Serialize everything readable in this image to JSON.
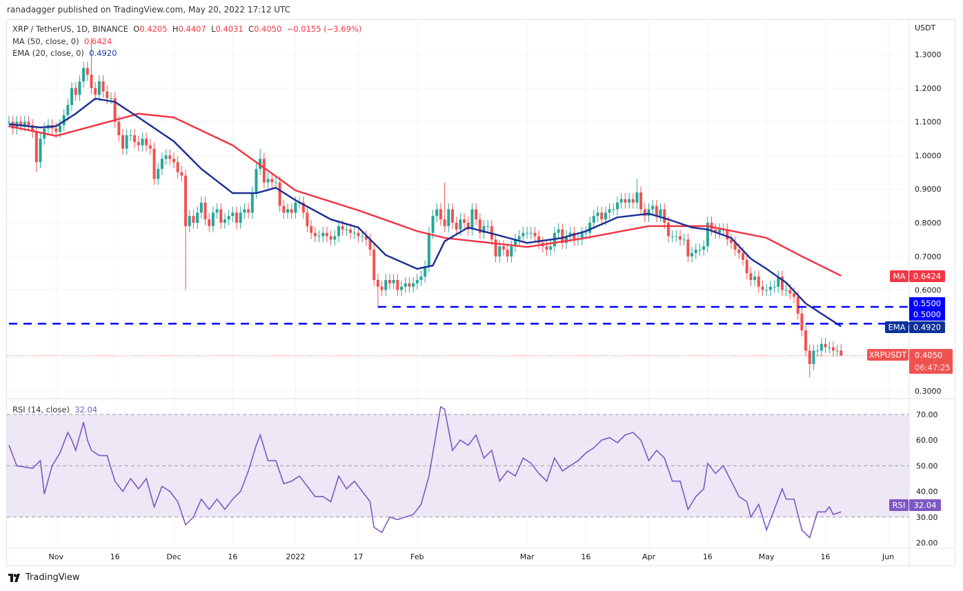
{
  "publisher_line": "ranadagger published on TradingView.com, May 20, 2022 17:12 UTC",
  "legend": {
    "symbol": "XRP / TetherUS, 1D, BINANCE",
    "o_label": "O",
    "o": "0.4205",
    "h_label": "H",
    "h": "0.4407",
    "l_label": "L",
    "l": "0.4031",
    "c_label": "C",
    "c": "0.4050",
    "change": "−0.0155 (−3.69%)",
    "ma_label": "MA (50, close, 0)",
    "ma_value": "0.6424",
    "ema_label": "EMA (20, close, 0)",
    "ema_value": "0.4920",
    "rsi_label": "RSI (14, close)",
    "rsi_value": "32.04"
  },
  "axis": {
    "currency": "USDT",
    "price_ticks": [
      "1.3000",
      "1.2000",
      "1.1000",
      "1.0000",
      "0.9000",
      "0.8000",
      "0.7000",
      "0.6000",
      "0.3000"
    ],
    "rsi_ticks": [
      "70.00",
      "60.00",
      "50.00",
      "40.00",
      "30.00",
      "20.00"
    ],
    "time_ticks": [
      {
        "date": "2021-11-01",
        "label": "Nov"
      },
      {
        "date": "2021-11-16",
        "label": "16"
      },
      {
        "date": "2021-12-01",
        "label": "Dec"
      },
      {
        "date": "2021-12-16",
        "label": "16"
      },
      {
        "date": "2022-01-01",
        "label": "2022"
      },
      {
        "date": "2022-01-17",
        "label": "17"
      },
      {
        "date": "2022-02-01",
        "label": "Feb"
      },
      {
        "date": "2022-03-01",
        "label": "Mar"
      },
      {
        "date": "2022-03-16",
        "label": "16"
      },
      {
        "date": "2022-04-01",
        "label": "Apr"
      },
      {
        "date": "2022-04-16",
        "label": "16"
      },
      {
        "date": "2022-05-01",
        "label": "May"
      },
      {
        "date": "2022-05-16",
        "label": "16"
      },
      {
        "date": "2022-06-01",
        "label": "Jun"
      }
    ]
  },
  "badges": {
    "ma_tag": "MA",
    "ma_price": "0.6424",
    "level_550": "0.5500",
    "level_500": "0.5000",
    "ema_tag": "EMA",
    "ema_price": "0.4920",
    "symbol_tag": "XRPUSDT",
    "last_price": "0.4050",
    "countdown": "06:47:25",
    "rsi_tag": "RSI",
    "rsi_price": "32.04"
  },
  "footer": {
    "brand": "TradingView"
  },
  "colors": {
    "up": "#26a69a",
    "down": "#ef5350",
    "ma": "#f23645",
    "ema": "#1e3093",
    "levels": "#0000ff",
    "rsi": "#7e57c2",
    "rsi_band": "#ede7f6"
  },
  "chart_data": [
    {
      "type": "candlestick",
      "start_date": "2021-10-20",
      "closes": [
        1.1,
        1.08,
        1.1,
        1.09,
        1.1,
        1.09,
        1.07,
        0.98,
        1.05,
        1.08,
        1.09,
        1.08,
        1.07,
        1.09,
        1.12,
        1.15,
        1.2,
        1.18,
        1.22,
        1.26,
        1.24,
        1.2,
        1.18,
        1.22,
        1.19,
        1.17,
        1.17,
        1.1,
        1.06,
        1.02,
        1.06,
        1.06,
        1.04,
        1.03,
        1.05,
        1.03,
        1.02,
        0.93,
        0.96,
        0.99,
        1.0,
        0.99,
        0.98,
        0.95,
        0.94,
        0.79,
        0.82,
        0.8,
        0.83,
        0.86,
        0.81,
        0.79,
        0.83,
        0.84,
        0.8,
        0.81,
        0.82,
        0.83,
        0.8,
        0.83,
        0.84,
        0.83,
        0.89,
        0.96,
        0.99,
        0.92,
        0.93,
        0.92,
        0.92,
        0.85,
        0.83,
        0.84,
        0.83,
        0.86,
        0.86,
        0.83,
        0.79,
        0.77,
        0.76,
        0.76,
        0.77,
        0.76,
        0.75,
        0.76,
        0.79,
        0.78,
        0.78,
        0.77,
        0.77,
        0.76,
        0.76,
        0.75,
        0.72,
        0.63,
        0.61,
        0.6,
        0.63,
        0.62,
        0.63,
        0.6,
        0.61,
        0.62,
        0.61,
        0.62,
        0.63,
        0.64,
        0.67,
        0.77,
        0.82,
        0.84,
        0.81,
        0.79,
        0.84,
        0.8,
        0.78,
        0.81,
        0.8,
        0.78,
        0.84,
        0.81,
        0.77,
        0.79,
        0.79,
        0.75,
        0.7,
        0.73,
        0.72,
        0.7,
        0.73,
        0.75,
        0.76,
        0.77,
        0.77,
        0.77,
        0.76,
        0.74,
        0.73,
        0.72,
        0.73,
        0.77,
        0.78,
        0.74,
        0.76,
        0.77,
        0.75,
        0.75,
        0.77,
        0.77,
        0.8,
        0.82,
        0.83,
        0.81,
        0.83,
        0.84,
        0.84,
        0.86,
        0.87,
        0.86,
        0.87,
        0.86,
        0.89,
        0.84,
        0.82,
        0.84,
        0.85,
        0.82,
        0.84,
        0.8,
        0.76,
        0.76,
        0.76,
        0.75,
        0.75,
        0.7,
        0.71,
        0.72,
        0.72,
        0.73,
        0.8,
        0.78,
        0.77,
        0.78,
        0.78,
        0.75,
        0.74,
        0.72,
        0.71,
        0.69,
        0.65,
        0.63,
        0.64,
        0.61,
        0.6,
        0.6,
        0.61,
        0.61,
        0.64,
        0.6,
        0.6,
        0.59,
        0.58,
        0.53,
        0.48,
        0.42,
        0.38,
        0.42,
        0.42,
        0.44,
        0.43,
        0.43,
        0.42,
        0.42,
        0.405
      ],
      "last_candle": {
        "o": 0.4205,
        "h": 0.4407,
        "l": 0.4031,
        "c": 0.405
      },
      "wick_extremes": {
        "2021-10-27": {
          "l": 0.95
        },
        "2021-11-10": {
          "h": 1.35
        },
        "2021-12-04": {
          "l": 0.6
        },
        "2021-12-23": {
          "h": 1.02
        },
        "2022-01-22": {
          "l": 0.55
        },
        "2022-02-08": {
          "h": 0.92
        },
        "2022-03-29": {
          "h": 0.93
        },
        "2022-05-12": {
          "l": 0.34
        }
      },
      "ylim": [
        0.26,
        1.39
      ]
    },
    {
      "type": "line",
      "name": "MA (50, close, 0)",
      "points": [
        [
          "2021-10-20",
          1.087
        ],
        [
          "2021-11-01",
          1.058
        ],
        [
          "2021-11-16",
          1.105
        ],
        [
          "2021-11-22",
          1.124
        ],
        [
          "2021-12-01",
          1.113
        ],
        [
          "2021-12-16",
          1.03
        ],
        [
          "2022-01-01",
          0.896
        ],
        [
          "2022-01-17",
          0.837
        ],
        [
          "2022-02-01",
          0.775
        ],
        [
          "2022-02-08",
          0.755
        ],
        [
          "2022-03-01",
          0.728
        ],
        [
          "2022-03-16",
          0.755
        ],
        [
          "2022-04-01",
          0.79
        ],
        [
          "2022-04-16",
          0.79
        ],
        [
          "2022-05-01",
          0.755
        ],
        [
          "2022-05-10",
          0.7
        ],
        [
          "2022-05-20",
          0.6424
        ]
      ]
    },
    {
      "type": "line",
      "name": "EMA (20, close, 0)",
      "points": [
        [
          "2021-10-20",
          1.093
        ],
        [
          "2021-10-28",
          1.083
        ],
        [
          "2021-11-01",
          1.087
        ],
        [
          "2021-11-06",
          1.124
        ],
        [
          "2021-11-11",
          1.169
        ],
        [
          "2021-11-16",
          1.159
        ],
        [
          "2021-11-22",
          1.113
        ],
        [
          "2021-12-01",
          1.042
        ],
        [
          "2021-12-08",
          0.96
        ],
        [
          "2021-12-16",
          0.888
        ],
        [
          "2021-12-22",
          0.888
        ],
        [
          "2021-12-27",
          0.904
        ],
        [
          "2022-01-01",
          0.867
        ],
        [
          "2022-01-10",
          0.81
        ],
        [
          "2022-01-17",
          0.786
        ],
        [
          "2022-01-24",
          0.704
        ],
        [
          "2022-02-01",
          0.663
        ],
        [
          "2022-02-05",
          0.673
        ],
        [
          "2022-02-08",
          0.745
        ],
        [
          "2022-02-14",
          0.786
        ],
        [
          "2022-02-21",
          0.765
        ],
        [
          "2022-03-01",
          0.74
        ],
        [
          "2022-03-10",
          0.755
        ],
        [
          "2022-03-16",
          0.775
        ],
        [
          "2022-03-24",
          0.816
        ],
        [
          "2022-04-01",
          0.827
        ],
        [
          "2022-04-06",
          0.81
        ],
        [
          "2022-04-12",
          0.786
        ],
        [
          "2022-04-16",
          0.78
        ],
        [
          "2022-04-22",
          0.755
        ],
        [
          "2022-04-27",
          0.693
        ],
        [
          "2022-05-01",
          0.663
        ],
        [
          "2022-05-06",
          0.622
        ],
        [
          "2022-05-11",
          0.56
        ],
        [
          "2022-05-20",
          0.492
        ]
      ]
    },
    {
      "type": "hline",
      "levels": [
        {
          "value": 0.55,
          "from": "2022-01-22"
        },
        {
          "value": 0.5,
          "from": "2021-10-20"
        }
      ]
    },
    {
      "type": "line",
      "name": "RSI (14, close)",
      "ylim": [
        18,
        78
      ],
      "bands": [
        30,
        50,
        70
      ],
      "points": [
        [
          "2021-10-20",
          58
        ],
        [
          "2021-10-22",
          50
        ],
        [
          "2021-10-26",
          49
        ],
        [
          "2021-10-28",
          52
        ],
        [
          "2021-10-29",
          39
        ],
        [
          "2021-10-31",
          50
        ],
        [
          "2021-11-02",
          55
        ],
        [
          "2021-11-04",
          63
        ],
        [
          "2021-11-05",
          60
        ],
        [
          "2021-11-06",
          56
        ],
        [
          "2021-11-08",
          67
        ],
        [
          "2021-11-09",
          60
        ],
        [
          "2021-11-10",
          56
        ],
        [
          "2021-11-12",
          54
        ],
        [
          "2021-11-14",
          54
        ],
        [
          "2021-11-16",
          44
        ],
        [
          "2021-11-18",
          40
        ],
        [
          "2021-11-20",
          45
        ],
        [
          "2021-11-22",
          41
        ],
        [
          "2021-11-24",
          45
        ],
        [
          "2021-11-26",
          34
        ],
        [
          "2021-11-28",
          42
        ],
        [
          "2021-11-30",
          40
        ],
        [
          "2021-12-02",
          36
        ],
        [
          "2021-12-04",
          27
        ],
        [
          "2021-12-06",
          30
        ],
        [
          "2021-12-08",
          37
        ],
        [
          "2021-12-10",
          33
        ],
        [
          "2021-12-12",
          37
        ],
        [
          "2021-12-14",
          33
        ],
        [
          "2021-12-16",
          37
        ],
        [
          "2021-12-18",
          40
        ],
        [
          "2021-12-20",
          48
        ],
        [
          "2021-12-22",
          58
        ],
        [
          "2021-12-23",
          62
        ],
        [
          "2021-12-25",
          52
        ],
        [
          "2021-12-27",
          52
        ],
        [
          "2021-12-29",
          43
        ],
        [
          "2021-12-31",
          44
        ],
        [
          "2022-01-02",
          46
        ],
        [
          "2022-01-04",
          42
        ],
        [
          "2022-01-06",
          38
        ],
        [
          "2022-01-08",
          38
        ],
        [
          "2022-01-10",
          36
        ],
        [
          "2022-01-12",
          46
        ],
        [
          "2022-01-14",
          41
        ],
        [
          "2022-01-16",
          44
        ],
        [
          "2022-01-18",
          40
        ],
        [
          "2022-01-20",
          36
        ],
        [
          "2022-01-21",
          26
        ],
        [
          "2022-01-23",
          24
        ],
        [
          "2022-01-25",
          30
        ],
        [
          "2022-01-27",
          29
        ],
        [
          "2022-01-29",
          30
        ],
        [
          "2022-01-31",
          31
        ],
        [
          "2022-02-02",
          35
        ],
        [
          "2022-02-04",
          46
        ],
        [
          "2022-02-05",
          55
        ],
        [
          "2022-02-07",
          73
        ],
        [
          "2022-02-08",
          72
        ],
        [
          "2022-02-10",
          56
        ],
        [
          "2022-02-12",
          60
        ],
        [
          "2022-02-14",
          58
        ],
        [
          "2022-02-16",
          62
        ],
        [
          "2022-02-18",
          53
        ],
        [
          "2022-02-20",
          56
        ],
        [
          "2022-02-22",
          44
        ],
        [
          "2022-02-24",
          48
        ],
        [
          "2022-02-26",
          46
        ],
        [
          "2022-02-28",
          53
        ],
        [
          "2022-03-02",
          51
        ],
        [
          "2022-03-04",
          47
        ],
        [
          "2022-03-06",
          44
        ],
        [
          "2022-03-08",
          53
        ],
        [
          "2022-03-10",
          48
        ],
        [
          "2022-03-12",
          50
        ],
        [
          "2022-03-14",
          52
        ],
        [
          "2022-03-16",
          55
        ],
        [
          "2022-03-18",
          57
        ],
        [
          "2022-03-20",
          60
        ],
        [
          "2022-03-22",
          61
        ],
        [
          "2022-03-24",
          59
        ],
        [
          "2022-03-26",
          62
        ],
        [
          "2022-03-28",
          63
        ],
        [
          "2022-03-30",
          60
        ],
        [
          "2022-04-01",
          52
        ],
        [
          "2022-04-03",
          56
        ],
        [
          "2022-04-05",
          53
        ],
        [
          "2022-04-07",
          44
        ],
        [
          "2022-04-09",
          44
        ],
        [
          "2022-04-11",
          33
        ],
        [
          "2022-04-13",
          38
        ],
        [
          "2022-04-15",
          41
        ],
        [
          "2022-04-16",
          51
        ],
        [
          "2022-04-18",
          47
        ],
        [
          "2022-04-20",
          50
        ],
        [
          "2022-04-22",
          44
        ],
        [
          "2022-04-24",
          38
        ],
        [
          "2022-04-26",
          36
        ],
        [
          "2022-04-27",
          30
        ],
        [
          "2022-04-29",
          35
        ],
        [
          "2022-05-01",
          25
        ],
        [
          "2022-05-03",
          33
        ],
        [
          "2022-05-05",
          41
        ],
        [
          "2022-05-06",
          37
        ],
        [
          "2022-05-08",
          37
        ],
        [
          "2022-05-10",
          25
        ],
        [
          "2022-05-12",
          22
        ],
        [
          "2022-05-14",
          32
        ],
        [
          "2022-05-16",
          32
        ],
        [
          "2022-05-17",
          34
        ],
        [
          "2022-05-18",
          31
        ],
        [
          "2022-05-20",
          32.04
        ]
      ]
    }
  ]
}
